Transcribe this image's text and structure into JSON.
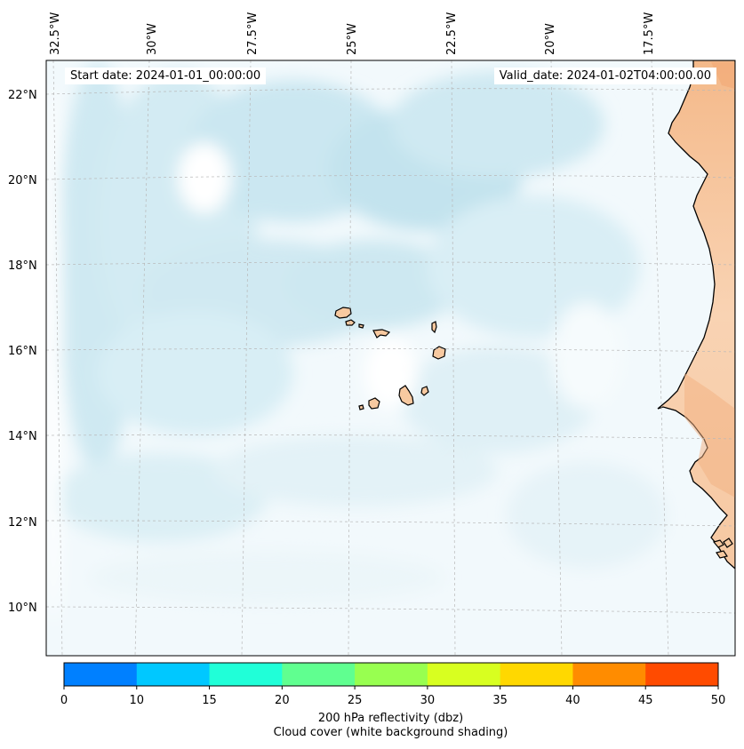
{
  "map": {
    "lon_labels": [
      "32.5°W",
      "30°W",
      "27.5°W",
      "25°W",
      "22.5°W",
      "20°W",
      "17.5°W"
    ],
    "lat_labels": [
      "22°N",
      "20°N",
      "18°N",
      "16°N",
      "14°N",
      "12°N",
      "10°N"
    ],
    "start_date": "Start date: 2024-01-01_00:00:00",
    "valid_date": "Valid_date: 2024-01-02T04:00:00.00",
    "land_color": "#f7c9a0",
    "land_color_dark": "#f2a874",
    "cloud_color": "#a8d8e6"
  },
  "colorbar": {
    "ticks": [
      "0",
      "10",
      "15",
      "20",
      "25",
      "30",
      "35",
      "40",
      "45",
      "50"
    ],
    "colors": [
      "#0080ff",
      "#00c8ff",
      "#20ffd8",
      "#60ff90",
      "#98ff50",
      "#d8ff20",
      "#ffd800",
      "#ff8c00",
      "#ff4b00"
    ],
    "label_line1": "200 hPa reflectivity (dbz)",
    "label_line2": "Cloud cover (white background shading)"
  }
}
